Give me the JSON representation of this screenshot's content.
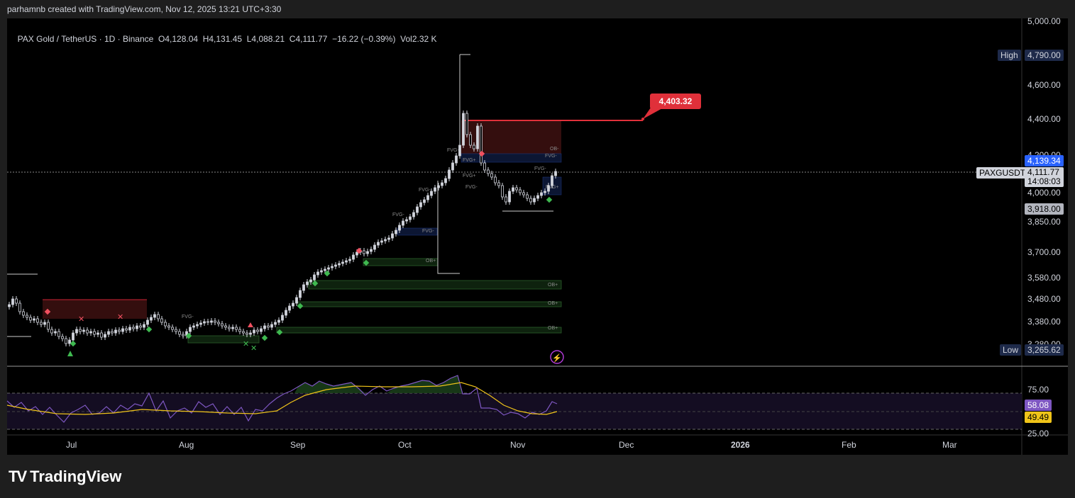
{
  "header": {
    "attribution": "parhamnb created with TradingView.com, Nov 12, 2025 13:21 UTC+3:30",
    "symbol_title": "PAX Gold / TetherUS · 1D · Binance",
    "ohlc": "O4,128.04  H4,131.45  L4,088.21  C4,111.77  −16.22 (−0.39%)  Vol2.32 K"
  },
  "price_axis": {
    "ticks": [
      "5,000.00",
      "4,600.00",
      "4,400.00",
      "4,200.00",
      "4,000.00",
      "3,850.00",
      "3,700.00",
      "3,580.00",
      "3,480.00",
      "3,380.00",
      "3,280.00"
    ],
    "high_label": "High",
    "high_value": "4,790.00",
    "low_label": "Low",
    "low_value": "3,265.62",
    "blue_tag": "4,139.34",
    "symbol_tag": "PAXGUSDT",
    "last_price": "4,111.77",
    "countdown": "14:08:03",
    "grey_tag": "3,918.00"
  },
  "annotation": {
    "callout_value": "4,403.32"
  },
  "rsi_axis": {
    "ticks": [
      "75.00",
      "25.00"
    ],
    "rsi_value": "58.08",
    "ma_value": "49.49"
  },
  "time_axis": {
    "labels": [
      "Jul",
      "Aug",
      "Sep",
      "Oct",
      "Nov",
      "Dec",
      "2026",
      "Feb",
      "Mar"
    ]
  },
  "markers": {
    "ob_plus": "OB+",
    "ob_minus": "OB-",
    "fvg_plus": "FVG+",
    "fvg_minus": "FVG-"
  },
  "colors": {
    "up": "#d1d4dc",
    "callout": "#e0303a",
    "blue_tag": "#2962ff",
    "rsi_line": "#7e57c2",
    "rsi_ma": "#f0c419",
    "ob_green": "#1b3a1b"
  },
  "brand": {
    "name": "TradingView"
  }
}
